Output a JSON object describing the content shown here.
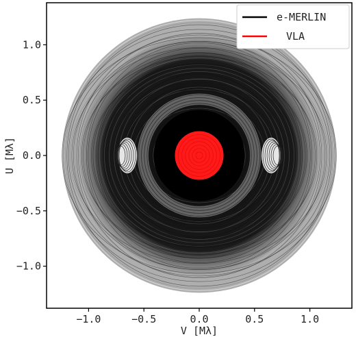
{
  "chart_data": {
    "type": "scatter",
    "title": "",
    "xlabel": "V [Mλ]",
    "ylabel": "U [Mλ]",
    "xlim": [
      -1.38,
      1.38
    ],
    "ylim": [
      -1.38,
      1.38
    ],
    "xticks": [
      -1.0,
      -0.5,
      0.0,
      0.5,
      1.0
    ],
    "yticks": [
      -1.0,
      -0.5,
      0.0,
      0.5,
      1.0
    ],
    "xtick_labels": [
      "−1.0",
      "−0.5",
      "0.0",
      "0.5",
      "1.0"
    ],
    "ytick_labels": [
      "−1.0",
      "−0.5",
      "0.0",
      "0.5",
      "1.0"
    ],
    "grid": false,
    "legend_position": "top-right",
    "series": [
      {
        "name": "e-MERLIN",
        "color": "#000000",
        "description_shape": "uv-coverage tracks",
        "max_radius": 1.24,
        "dense_radius": 1.08,
        "inner_ring": [
          0.42,
          0.6
        ],
        "side_lobe_centers": [
          [
            -0.65,
            0.0
          ],
          [
            0.65,
            0.0
          ]
        ]
      },
      {
        "name": "VLA",
        "color": "#ff0000",
        "description_shape": "uv-coverage disk",
        "max_radius": 0.22
      }
    ]
  }
}
